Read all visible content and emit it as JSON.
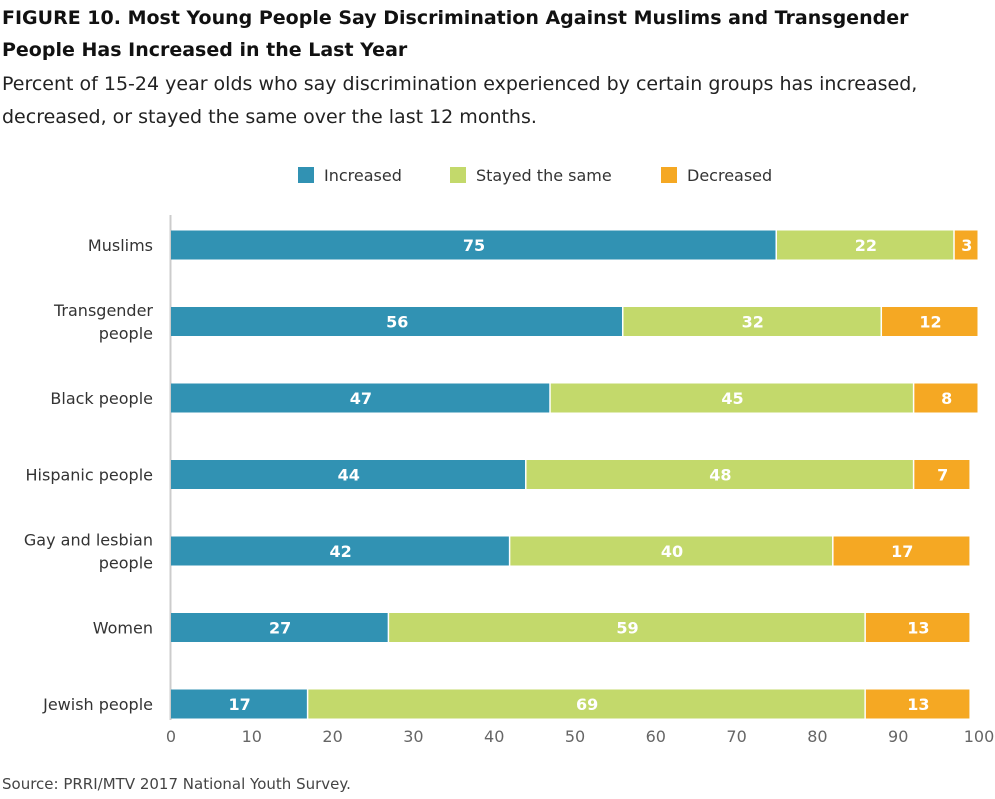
{
  "figure": {
    "title": "FIGURE 10.  Most Young People Say Discrimination Against Muslims and Transgender People Has Increased in the Last Year",
    "subtitle": "Percent of 15-24 year olds who say discrimination experienced by certain groups has increased, decreased, or stayed the same over the last 12 months.",
    "source": "Source: PRRI/MTV 2017 National Youth Survey."
  },
  "legend": {
    "placement": "top-center",
    "items": [
      {
        "label": "Increased",
        "color": "#3192b3"
      },
      {
        "label": "Stayed the same",
        "color": "#c3d96b"
      },
      {
        "label": "Decreased",
        "color": "#f5a823"
      }
    ]
  },
  "chart_data": {
    "type": "bar",
    "orientation": "horizontal",
    "stacked": true,
    "categories": [
      "Muslims",
      "Transgender people",
      "Black people",
      "Hispanic people",
      "Gay and lesbian people",
      "Women",
      "Jewish people"
    ],
    "category_lines": [
      [
        "Muslims"
      ],
      [
        "Transgender",
        "people"
      ],
      [
        "Black people"
      ],
      [
        "Hispanic people"
      ],
      [
        "Gay and lesbian",
        "people"
      ],
      [
        "Women"
      ],
      [
        "Jewish people"
      ]
    ],
    "series": [
      {
        "name": "Increased",
        "color": "#3192b3",
        "values": [
          75,
          56,
          47,
          44,
          42,
          27,
          17
        ]
      },
      {
        "name": "Stayed the same",
        "color": "#c3d96b",
        "values": [
          22,
          32,
          45,
          48,
          40,
          59,
          69
        ]
      },
      {
        "name": "Decreased",
        "color": "#f5a823",
        "values": [
          3,
          12,
          8,
          7,
          17,
          13,
          13
        ]
      }
    ],
    "xlim": [
      0,
      100
    ],
    "xticks": [
      0,
      10,
      20,
      30,
      40,
      50,
      60,
      70,
      80,
      90,
      100
    ],
    "grid": false,
    "data_labels": true
  }
}
